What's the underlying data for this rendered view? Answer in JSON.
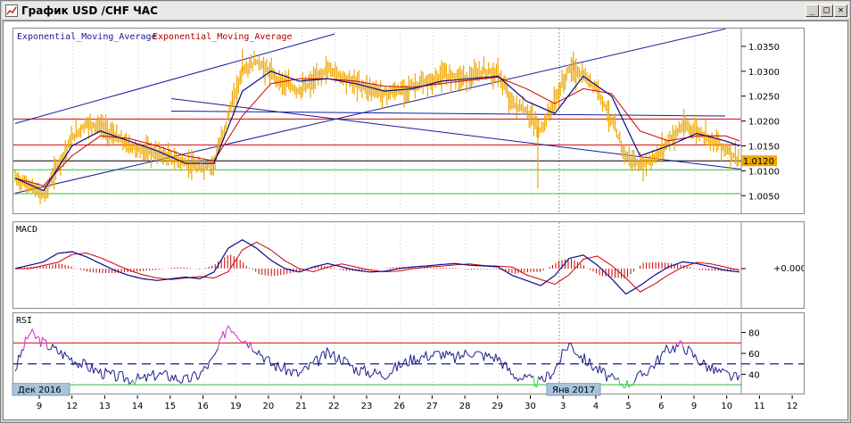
{
  "window": {
    "title": "График USD /CHF ЧАС",
    "minimize_label": "_",
    "maximize_label": "□",
    "close_label": "✕"
  },
  "main_panel": {
    "indicator_label_1": "Exponential_Moving_Average",
    "indicator_label_2": "Exponential_Moving_Average",
    "current_price": "1.0120"
  },
  "macd_panel": {
    "label": "MACD",
    "zero_label": "+0.000"
  },
  "rsi_panel": {
    "label": "RSI"
  },
  "date_badges": {
    "left": "Дек 2016",
    "right": "Янв 2017"
  },
  "colors": {
    "price": "#f0a800",
    "ema_fast": "#0b0b8c",
    "ema_slow": "#cc0000",
    "resistance": "#dd0000",
    "support": "#33bb33",
    "current": "#000000",
    "channel": "#1a1aa0",
    "macd_hist": "#cc0000",
    "rsi_line": "#1f1f8c",
    "rsi_over": "#cc33cc",
    "rsi_under": "#33cc33",
    "badge_bg": "#a8c4dc"
  },
  "chart_data": {
    "type": "candlestick",
    "symbol": "USD/CHF",
    "timeframe": "H1",
    "x_ticks": [
      "9",
      "12",
      "13",
      "14",
      "15",
      "16",
      "19",
      "20",
      "21",
      "22",
      "23",
      "26",
      "27",
      "28",
      "29",
      "30",
      "3",
      "4",
      "5",
      "6",
      "9",
      "10",
      "11",
      "12"
    ],
    "price_axis": {
      "ticks": [
        "1.0350",
        "1.0300",
        "1.0250",
        "1.0200",
        "1.0150",
        "1.0100",
        "1.0050"
      ],
      "range": [
        1.002,
        1.0375
      ]
    },
    "current_price": 1.012,
    "horizontal_levels": [
      {
        "value": 1.0204,
        "role": "resistance"
      },
      {
        "value": 1.0152,
        "role": "resistance"
      },
      {
        "value": 1.012,
        "role": "current"
      },
      {
        "value": 1.0102,
        "role": "support"
      },
      {
        "value": 1.0054,
        "role": "support"
      }
    ],
    "price_path": [
      [
        0,
        1.0085
      ],
      [
        1,
        1.007
      ],
      [
        2,
        1.005
      ],
      [
        3,
        1.011
      ],
      [
        4,
        1.0165
      ],
      [
        5,
        1.0195
      ],
      [
        6,
        1.019
      ],
      [
        7,
        1.017
      ],
      [
        8,
        1.015
      ],
      [
        9,
        1.014
      ],
      [
        10,
        1.0135
      ],
      [
        11,
        1.0125
      ],
      [
        12,
        1.0115
      ],
      [
        13,
        1.0105
      ],
      [
        14,
        1.0115
      ],
      [
        15,
        1.021
      ],
      [
        16,
        1.03
      ],
      [
        17,
        1.032
      ],
      [
        18,
        1.0295
      ],
      [
        19,
        1.0275
      ],
      [
        20,
        1.026
      ],
      [
        21,
        1.028
      ],
      [
        22,
        1.0305
      ],
      [
        23,
        1.029
      ],
      [
        24,
        1.0275
      ],
      [
        25,
        1.0265
      ],
      [
        26,
        1.0255
      ],
      [
        27,
        1.026
      ],
      [
        28,
        1.027
      ],
      [
        29,
        1.0275
      ],
      [
        30,
        1.029
      ],
      [
        31,
        1.0292
      ],
      [
        32,
        1.0285
      ],
      [
        33,
        1.03
      ],
      [
        34,
        1.0295
      ],
      [
        35,
        1.0235
      ],
      [
        36,
        1.022
      ],
      [
        37,
        1.018
      ],
      [
        38,
        1.024
      ],
      [
        39,
        1.0305
      ],
      [
        40,
        1.029
      ],
      [
        41,
        1.0265
      ],
      [
        42,
        1.02
      ],
      [
        43,
        1.013
      ],
      [
        44,
        1.011
      ],
      [
        45,
        1.0125
      ],
      [
        46,
        1.016
      ],
      [
        47,
        1.019
      ],
      [
        48,
        1.018
      ],
      [
        49,
        1.0165
      ],
      [
        50,
        1.0145
      ],
      [
        51,
        1.012
      ]
    ],
    "price_spikes": [
      {
        "x": 36.8,
        "low": 1.0065
      },
      {
        "x": 39.3,
        "high": 1.034
      },
      {
        "x": 16.0,
        "high": 1.0345
      }
    ],
    "ema_fast": [
      [
        0,
        1.0085
      ],
      [
        2,
        1.006
      ],
      [
        4,
        1.015
      ],
      [
        6,
        1.018
      ],
      [
        8,
        1.016
      ],
      [
        10,
        1.014
      ],
      [
        12,
        1.0115
      ],
      [
        14,
        1.0115
      ],
      [
        16,
        1.026
      ],
      [
        18,
        1.03
      ],
      [
        20,
        1.028
      ],
      [
        22,
        1.0285
      ],
      [
        24,
        1.0275
      ],
      [
        26,
        1.026
      ],
      [
        28,
        1.0265
      ],
      [
        30,
        1.028
      ],
      [
        32,
        1.0285
      ],
      [
        34,
        1.029
      ],
      [
        36,
        1.024
      ],
      [
        38,
        1.0215
      ],
      [
        40,
        1.029
      ],
      [
        42,
        1.025
      ],
      [
        44,
        1.013
      ],
      [
        46,
        1.015
      ],
      [
        48,
        1.0175
      ],
      [
        50,
        1.016
      ],
      [
        51,
        1.015
      ]
    ],
    "ema_slow": [
      [
        0,
        1.0085
      ],
      [
        2,
        1.007
      ],
      [
        4,
        1.013
      ],
      [
        6,
        1.017
      ],
      [
        8,
        1.0165
      ],
      [
        10,
        1.015
      ],
      [
        12,
        1.013
      ],
      [
        14,
        1.012
      ],
      [
        16,
        1.021
      ],
      [
        18,
        1.0275
      ],
      [
        20,
        1.0285
      ],
      [
        22,
        1.0285
      ],
      [
        24,
        1.028
      ],
      [
        26,
        1.027
      ],
      [
        28,
        1.0268
      ],
      [
        30,
        1.0275
      ],
      [
        32,
        1.0282
      ],
      [
        34,
        1.0288
      ],
      [
        36,
        1.0265
      ],
      [
        38,
        1.0235
      ],
      [
        40,
        1.0265
      ],
      [
        42,
        1.0255
      ],
      [
        44,
        1.018
      ],
      [
        46,
        1.016
      ],
      [
        48,
        1.017
      ],
      [
        50,
        1.017
      ],
      [
        51,
        1.016
      ]
    ],
    "channel_lines": [
      {
        "from": [
          0,
          1.0195
        ],
        "to": [
          22.5,
          1.0375
        ]
      },
      {
        "from": [
          0,
          1.0055
        ],
        "to": [
          50,
          1.0385
        ]
      },
      {
        "from": [
          11,
          1.022
        ],
        "to": [
          50,
          1.021
        ]
      },
      {
        "from": [
          11,
          1.0245
        ],
        "to": [
          52,
          1.01
        ]
      }
    ],
    "macd": {
      "range": [
        -1,
        1
      ],
      "values": [
        0,
        0.1,
        0.2,
        0.45,
        0.5,
        0.35,
        0.15,
        -0.05,
        -0.2,
        -0.3,
        -0.35,
        -0.3,
        -0.25,
        -0.3,
        -0.1,
        0.6,
        0.85,
        0.6,
        0.25,
        0.0,
        -0.1,
        0.05,
        0.15,
        0.05,
        -0.05,
        -0.1,
        -0.08,
        0.0,
        0.05,
        0.08,
        0.12,
        0.15,
        0.1,
        0.08,
        0.05,
        -0.2,
        -0.35,
        -0.5,
        -0.2,
        0.3,
        0.4,
        0.1,
        -0.3,
        -0.75,
        -0.5,
        -0.2,
        0.05,
        0.2,
        0.15,
        0.05,
        -0.05,
        -0.1
      ]
    },
    "rsi": {
      "ticks": [
        80,
        60,
        40
      ],
      "range": [
        25,
        95
      ],
      "levels": [
        70,
        50,
        30
      ],
      "values": [
        45,
        80,
        70,
        62,
        55,
        48,
        42,
        38,
        36,
        35,
        40,
        38,
        34,
        40,
        55,
        88,
        75,
        65,
        50,
        45,
        40,
        50,
        60,
        55,
        45,
        42,
        40,
        48,
        55,
        58,
        60,
        55,
        62,
        58,
        56,
        40,
        35,
        32,
        45,
        70,
        55,
        45,
        35,
        30,
        38,
        50,
        65,
        68,
        55,
        45,
        40,
        35
      ]
    }
  }
}
